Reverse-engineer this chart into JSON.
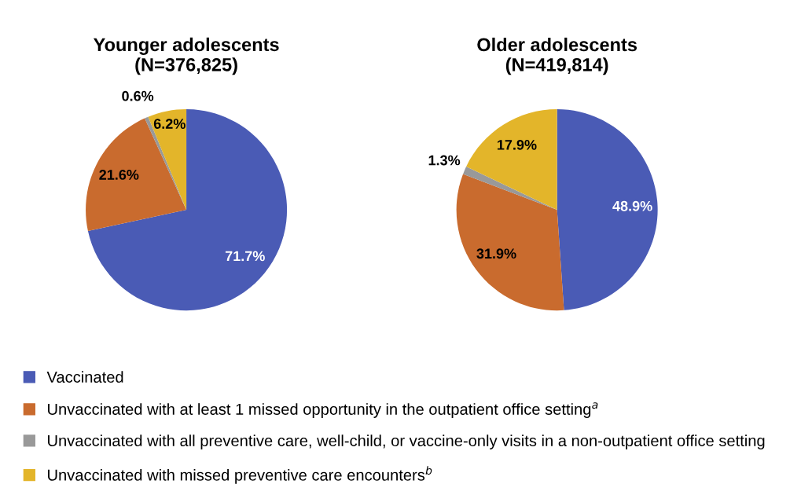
{
  "chart_data": [
    {
      "type": "pie",
      "title": "Younger adolescents\n(N=376,825)",
      "categories": [
        "Vaccinated",
        "Unvaccinated with at least 1 missed opportunity in the outpatient office setting$^{a}$",
        "Unvaccinated with all preventive care, well-child, or vaccine-only visits in a non-outpatient office setting",
        "Unvaccinated with missed preventive care encounters$^{b}$"
      ],
      "values": [
        71.7,
        21.6,
        0.6,
        6.2
      ],
      "colors": [
        "#4a5bb5",
        "#c96b2e",
        "#999999",
        "#e3b52a"
      ],
      "value_labels": [
        "71.7%",
        "21.6%",
        "0.6%",
        "6.2%"
      ],
      "legend": "bottom"
    },
    {
      "type": "pie",
      "title": "Older adolescents\n(N=419,814)",
      "categories": [
        null,
        null,
        null,
        null
      ],
      "values": [
        48.9,
        31.9,
        1.3,
        17.9
      ],
      "colors": [
        "#4a5bb5",
        "#c96b2e",
        "#999999",
        "#e3b52a"
      ],
      "value_labels": [
        "48.9%",
        "31.9%",
        "1.3%",
        "17.9%"
      ]
    }
  ]
}
